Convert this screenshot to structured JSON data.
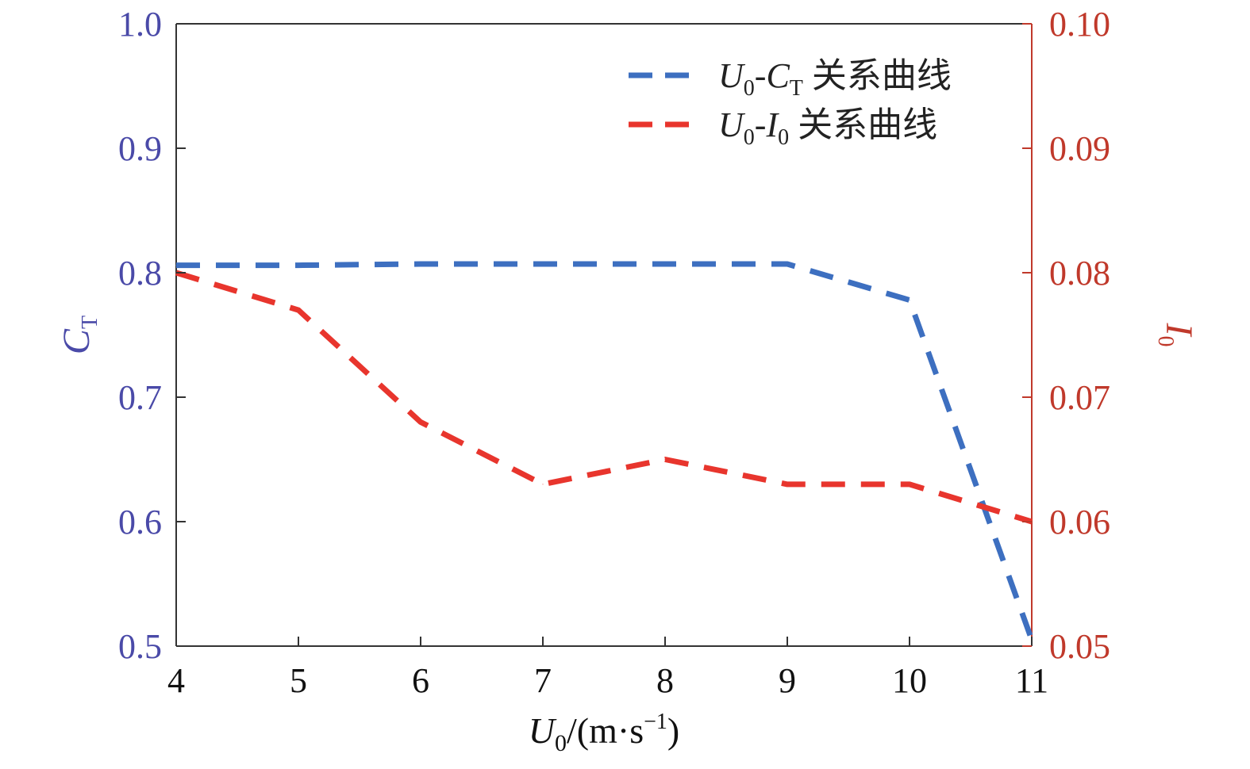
{
  "chart_data": {
    "type": "line",
    "title": "",
    "x": [
      4,
      5,
      6,
      7,
      8,
      9,
      10,
      11
    ],
    "xlim": [
      4,
      11
    ],
    "xticks": [
      "4",
      "5",
      "6",
      "7",
      "8",
      "9",
      "10",
      "11"
    ],
    "xlabel": {
      "main": "U",
      "sub": "0",
      "rest": "/(m·s",
      "sup": "−1",
      "end": ")"
    },
    "y_left": {
      "label": {
        "main": "C",
        "sub": "T"
      },
      "lim": [
        0.5,
        1.0
      ],
      "ticks": [
        "0.5",
        "0.6",
        "0.7",
        "0.8",
        "0.9",
        "1.0"
      ],
      "color": "#4a4aa8"
    },
    "y_right": {
      "label": {
        "main": "I",
        "sub": "0"
      },
      "lim": [
        0.05,
        0.1
      ],
      "ticks": [
        "0.05",
        "0.06",
        "0.07",
        "0.08",
        "0.09",
        "0.10"
      ],
      "color": "#c0392b"
    },
    "series": [
      {
        "name": "U0-CT 关系曲线",
        "legend": {
          "a": "U",
          "a_sub": "0",
          "dash": "-",
          "b": "C",
          "b_sub": "T",
          "suffix": " 关系曲线"
        },
        "axis": "left",
        "color": "#3d6fc0",
        "values": [
          0.806,
          0.806,
          0.807,
          0.807,
          0.807,
          0.807,
          0.778,
          0.505
        ]
      },
      {
        "name": "U0-I0 关系曲线",
        "legend": {
          "a": "U",
          "a_sub": "0",
          "dash": "-",
          "b": "I",
          "b_sub": "0",
          "suffix": " 关系曲线"
        },
        "axis": "right",
        "color": "#e8352d",
        "values": [
          0.08,
          0.077,
          0.068,
          0.063,
          0.065,
          0.063,
          0.063,
          0.06
        ]
      }
    ],
    "grid": false,
    "legend_position": "top-right"
  }
}
